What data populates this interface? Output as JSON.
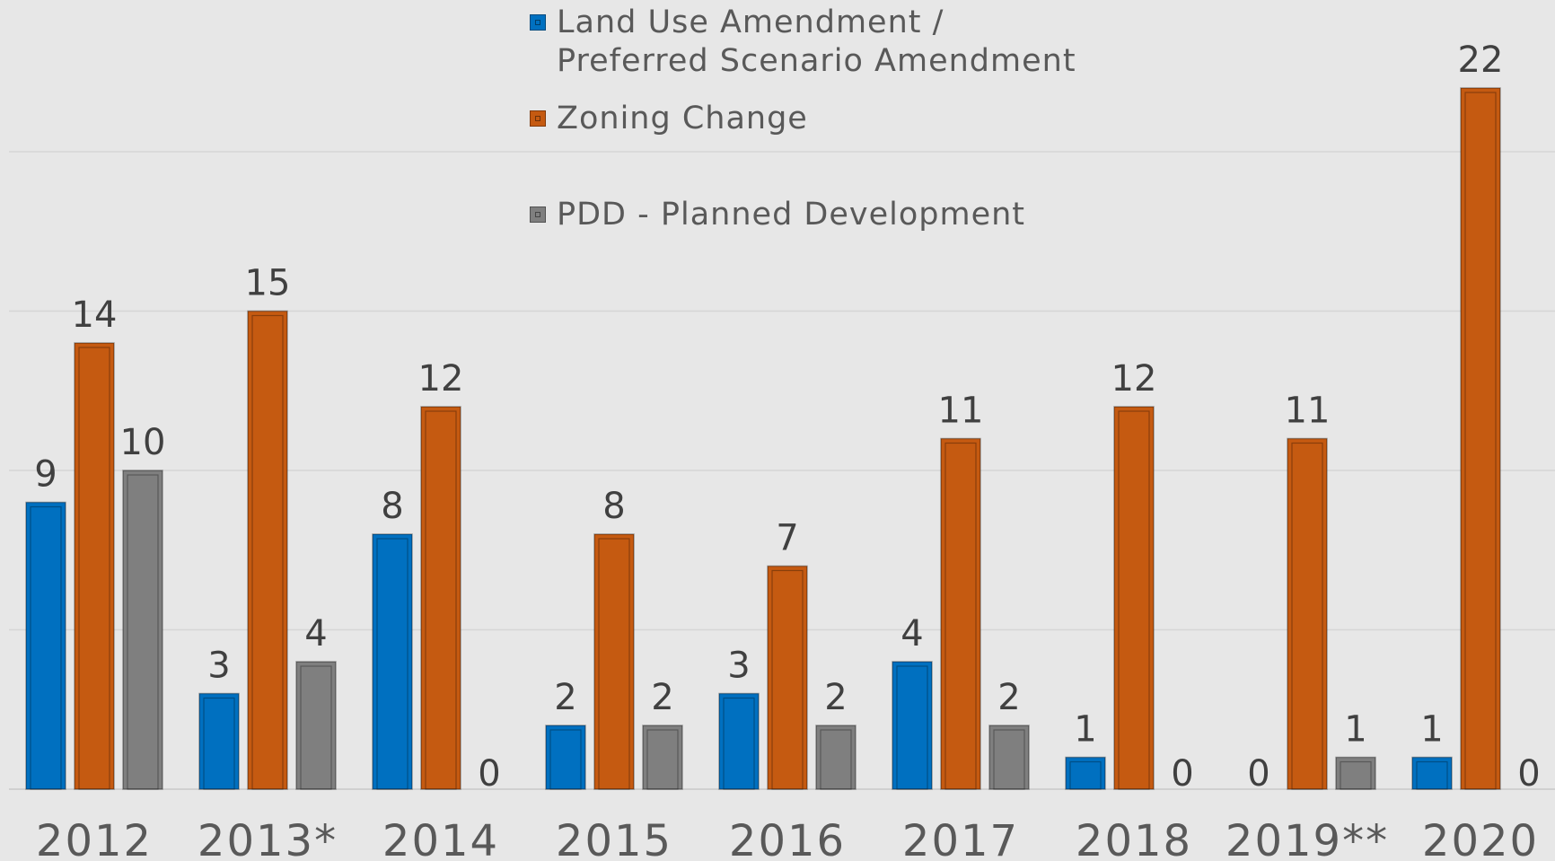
{
  "chart_data": {
    "type": "bar",
    "categories": [
      "2012",
      "2013*",
      "2014",
      "2015",
      "2016",
      "2017",
      "2018",
      "2019**",
      "2020"
    ],
    "series": [
      {
        "name": "Land Use Amendment / Preferred Scenario Amendment",
        "name_lines": [
          "Land Use Amendment /",
          "Preferred Scenario Amendment"
        ],
        "color": "#0070c0",
        "values": [
          9,
          3,
          8,
          2,
          3,
          4,
          1,
          0,
          1
        ]
      },
      {
        "name": "Zoning Change",
        "name_lines": [
          "Zoning Change"
        ],
        "color": "#c55a11",
        "values": [
          14,
          15,
          12,
          8,
          7,
          11,
          12,
          11,
          22
        ]
      },
      {
        "name": "PDD - Planned Development",
        "name_lines": [
          "PDD - Planned Development"
        ],
        "color": "#7f7f7f",
        "values": [
          10,
          4,
          0,
          2,
          2,
          2,
          0,
          1,
          0
        ]
      }
    ],
    "ylim": [
      0,
      25
    ],
    "grid": true,
    "legend_position": "top-center",
    "data_labels": true
  }
}
